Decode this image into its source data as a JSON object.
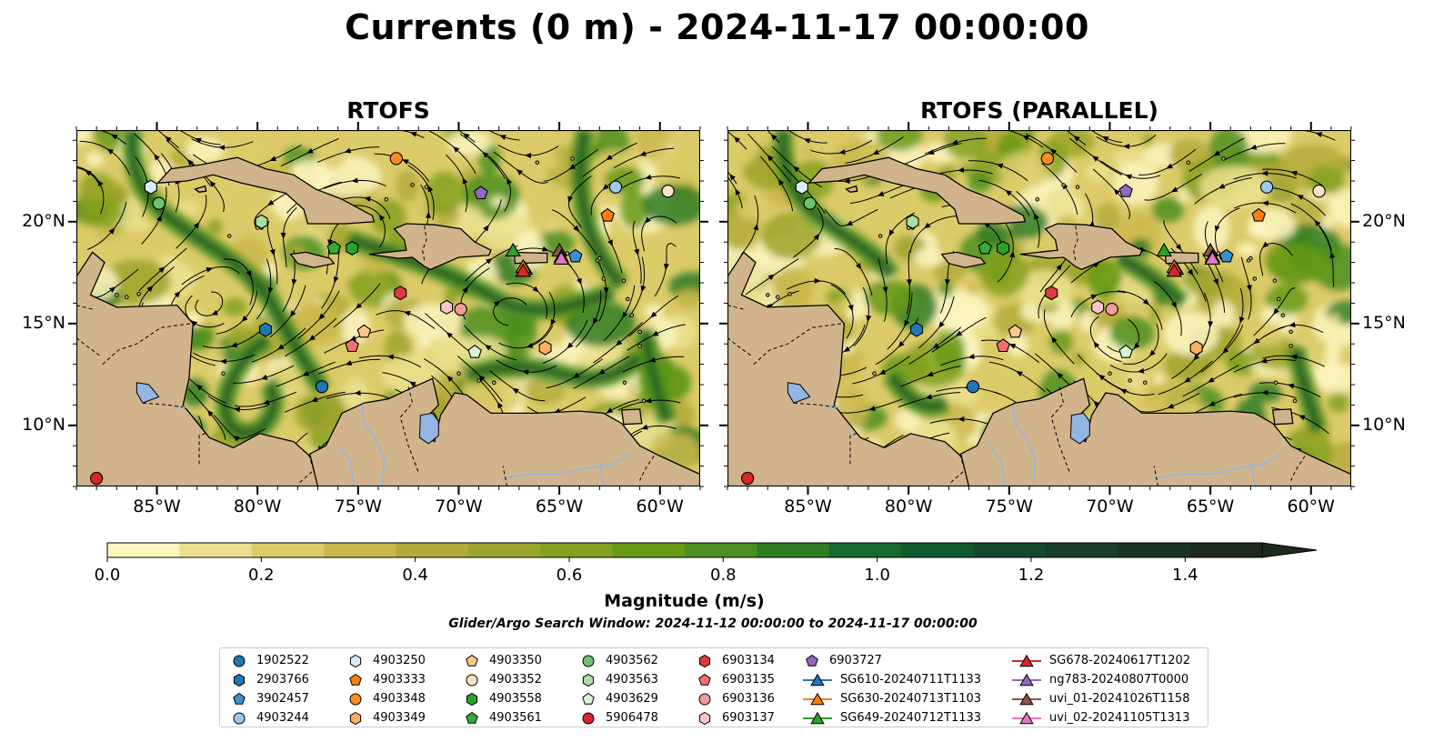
{
  "title": "Currents (0 m) - 2024-11-17 00:00:00",
  "panels": [
    {
      "title": "RTOFS",
      "y_tick_side": "left"
    },
    {
      "title": "RTOFS (PARALLEL)",
      "y_tick_side": "right"
    }
  ],
  "x_ticks": [
    "85°W",
    "80°W",
    "75°W",
    "70°W",
    "65°W",
    "60°W"
  ],
  "y_ticks": [
    "20°N",
    "15°N",
    "10°N"
  ],
  "colorbar": {
    "label": "Magnitude (m/s)",
    "ticks": [
      "0.0",
      "0.2",
      "0.4",
      "0.6",
      "0.8",
      "1.0",
      "1.2",
      "1.4"
    ],
    "colors": [
      "#fbf5c0",
      "#ece08f",
      "#dccb69",
      "#cbb84c",
      "#b4aa3a",
      "#9ca52b",
      "#84a11d",
      "#679a15",
      "#4c8f1e",
      "#2f7d23",
      "#166a2c",
      "#0f5a2f",
      "#124a2b",
      "#183d28",
      "#1c3221",
      "#1c2a1c"
    ],
    "extend": "max"
  },
  "search_window": "Glider/Argo Search Window: 2024-11-12 00:00:00 to 2024-11-17 00:00:00",
  "chart_data": [
    {
      "type": "heatmap",
      "title": "RTOFS",
      "variable": "Currents (0 m) magnitude with streamlines",
      "xlabel": "",
      "ylabel": "",
      "xlim": [
        -89,
        -58
      ],
      "ylim": [
        7,
        24.5
      ],
      "colorbar_range": [
        0.0,
        1.5
      ],
      "grid": false,
      "platforms": [
        {
          "id": "1902522",
          "lon": -76.8,
          "lat": 11.9
        },
        {
          "id": "2903766",
          "lon": -79.6,
          "lat": 14.7
        },
        {
          "id": "4903250",
          "lon": -85.3,
          "lat": 21.7
        },
        {
          "id": "4903562",
          "lon": -84.9,
          "lat": 20.9
        },
        {
          "id": "4903563",
          "lon": -79.8,
          "lat": 20.0
        },
        {
          "id": "4903348",
          "lon": -73.1,
          "lat": 23.1
        },
        {
          "id": "6903727",
          "lon": -68.9,
          "lat": 21.4
        },
        {
          "id": "4903244",
          "lon": -62.2,
          "lat": 21.7
        },
        {
          "id": "4903352",
          "lon": -59.6,
          "lat": 21.5
        },
        {
          "id": "4903333",
          "lon": -62.6,
          "lat": 20.3
        },
        {
          "id": "4903561",
          "lon": -76.2,
          "lat": 18.7
        },
        {
          "id": "4903558",
          "lon": -75.3,
          "lat": 18.7
        },
        {
          "id": "6903134",
          "lon": -72.9,
          "lat": 16.5
        },
        {
          "id": "6903137",
          "lon": -70.6,
          "lat": 15.8
        },
        {
          "id": "6903136",
          "lon": -69.9,
          "lat": 15.7
        },
        {
          "id": "4903350",
          "lon": -74.7,
          "lat": 14.6
        },
        {
          "id": "6903135",
          "lon": -75.3,
          "lat": 13.9
        },
        {
          "id": "4903629",
          "lon": -69.2,
          "lat": 13.6
        },
        {
          "id": "4903349",
          "lon": -65.7,
          "lat": 13.8
        },
        {
          "id": "3902457",
          "lon": -64.2,
          "lat": 18.3
        },
        {
          "id": "5906478",
          "lon": -88.0,
          "lat": 7.4
        }
      ],
      "gliders": [
        {
          "id": "SG649-20240712T1133",
          "lon": -67.3,
          "lat": 18.6
        },
        {
          "id": "SG610-20240711T1133",
          "lon": -66.7,
          "lat": 17.7
        },
        {
          "id": "SG630-20240713T1103",
          "lon": -66.8,
          "lat": 17.8
        },
        {
          "id": "SG678-20240617T1202",
          "lon": -66.8,
          "lat": 17.6
        },
        {
          "id": "uvi_01-20241026T1158",
          "lon": -65.0,
          "lat": 18.6
        },
        {
          "id": "ng783-20240807T0000",
          "lon": -64.9,
          "lat": 18.3
        },
        {
          "id": "uvi_02-20241105T1313",
          "lon": -64.9,
          "lat": 18.2
        }
      ]
    },
    {
      "type": "heatmap",
      "title": "RTOFS (PARALLEL)",
      "variable": "Currents (0 m) magnitude with streamlines",
      "xlabel": "",
      "ylabel": "",
      "xlim": [
        -89,
        -58
      ],
      "ylim": [
        7,
        24.5
      ],
      "colorbar_range": [
        0.0,
        1.5
      ],
      "grid": false,
      "platforms": [
        {
          "id": "1902522",
          "lon": -76.8,
          "lat": 11.9
        },
        {
          "id": "2903766",
          "lon": -79.6,
          "lat": 14.7
        },
        {
          "id": "4903250",
          "lon": -85.3,
          "lat": 21.7
        },
        {
          "id": "4903562",
          "lon": -84.9,
          "lat": 20.9
        },
        {
          "id": "4903563",
          "lon": -79.8,
          "lat": 20.0
        },
        {
          "id": "4903348",
          "lon": -73.1,
          "lat": 23.1
        },
        {
          "id": "6903727",
          "lon": -69.2,
          "lat": 21.5
        },
        {
          "id": "4903244",
          "lon": -62.2,
          "lat": 21.7
        },
        {
          "id": "4903352",
          "lon": -59.6,
          "lat": 21.5
        },
        {
          "id": "4903333",
          "lon": -62.6,
          "lat": 20.3
        },
        {
          "id": "4903561",
          "lon": -76.2,
          "lat": 18.7
        },
        {
          "id": "4903558",
          "lon": -75.3,
          "lat": 18.7
        },
        {
          "id": "6903134",
          "lon": -72.9,
          "lat": 16.5
        },
        {
          "id": "6903137",
          "lon": -70.6,
          "lat": 15.8
        },
        {
          "id": "6903136",
          "lon": -69.9,
          "lat": 15.7
        },
        {
          "id": "4903350",
          "lon": -74.7,
          "lat": 14.6
        },
        {
          "id": "6903135",
          "lon": -75.3,
          "lat": 13.9
        },
        {
          "id": "4903629",
          "lon": -69.2,
          "lat": 13.6
        },
        {
          "id": "4903349",
          "lon": -65.7,
          "lat": 13.8
        },
        {
          "id": "3902457",
          "lon": -64.2,
          "lat": 18.3
        },
        {
          "id": "5906478",
          "lon": -88.0,
          "lat": 7.4
        }
      ],
      "gliders": [
        {
          "id": "SG649-20240712T1133",
          "lon": -67.3,
          "lat": 18.6
        },
        {
          "id": "SG610-20240711T1133",
          "lon": -66.7,
          "lat": 17.7
        },
        {
          "id": "SG630-20240713T1103",
          "lon": -66.8,
          "lat": 17.8
        },
        {
          "id": "SG678-20240617T1202",
          "lon": -66.8,
          "lat": 17.6
        },
        {
          "id": "uvi_01-20241026T1158",
          "lon": -65.0,
          "lat": 18.6
        },
        {
          "id": "ng783-20240807T0000",
          "lon": -64.9,
          "lat": 18.3
        },
        {
          "id": "uvi_02-20241105T1313",
          "lon": -64.9,
          "lat": 18.2
        }
      ]
    }
  ],
  "legend": {
    "placement": "bottom-center",
    "columns": [
      [
        {
          "label": "1902522",
          "marker": "circle",
          "color": "#1f77b4"
        },
        {
          "label": "2903766",
          "marker": "hexagon",
          "color": "#1f77b4"
        },
        {
          "label": "3902457",
          "marker": "pentagon",
          "color": "#3a8fd0"
        },
        {
          "label": "4903244",
          "marker": "circle",
          "color": "#9ec9ec"
        }
      ],
      [
        {
          "label": "4903250",
          "marker": "hexagon",
          "color": "#d8ecfb"
        },
        {
          "label": "4903333",
          "marker": "pentagon",
          "color": "#ff7f0e"
        },
        {
          "label": "4903348",
          "marker": "circle",
          "color": "#ff8c24"
        },
        {
          "label": "4903349",
          "marker": "hexagon",
          "color": "#ffb061"
        }
      ],
      [
        {
          "label": "4903350",
          "marker": "pentagon",
          "color": "#ffc88a"
        },
        {
          "label": "4903352",
          "marker": "circle",
          "color": "#ffe1c4"
        },
        {
          "label": "4903558",
          "marker": "hexagon",
          "color": "#2ca02c"
        },
        {
          "label": "4903561",
          "marker": "pentagon",
          "color": "#38aa38"
        }
      ],
      [
        {
          "label": "4903562",
          "marker": "circle",
          "color": "#6cc46c"
        },
        {
          "label": "4903563",
          "marker": "hexagon",
          "color": "#a8e0a0"
        },
        {
          "label": "4903629",
          "marker": "pentagon",
          "color": "#d8f5d0"
        },
        {
          "label": "5906478",
          "marker": "circle",
          "color": "#d62728"
        }
      ],
      [
        {
          "label": "6903134",
          "marker": "hexagon",
          "color": "#dc3c3c"
        },
        {
          "label": "6903135",
          "marker": "pentagon",
          "color": "#f07070"
        },
        {
          "label": "6903136",
          "marker": "circle",
          "color": "#f59a9a"
        },
        {
          "label": "6903137",
          "marker": "hexagon",
          "color": "#fbc6c6"
        }
      ],
      [
        {
          "label": "6903727",
          "marker": "pentagon",
          "color": "#9467bd"
        },
        {
          "label": "SG610-20240711T1133",
          "marker": "triangle-line",
          "color": "#1f77b4"
        },
        {
          "label": "SG630-20240713T1103",
          "marker": "triangle-line",
          "color": "#ff7f0e"
        },
        {
          "label": "SG649-20240712T1133",
          "marker": "triangle-line",
          "color": "#2ca02c"
        }
      ],
      [
        {
          "label": "SG678-20240617T1202",
          "marker": "triangle-line",
          "color": "#d62728"
        },
        {
          "label": "ng783-20240807T0000",
          "marker": "triangle-line",
          "color": "#9467bd"
        },
        {
          "label": "uvi_01-20241026T1158",
          "marker": "triangle-line",
          "color": "#8c564b"
        },
        {
          "label": "uvi_02-20241105T1313",
          "marker": "triangle-line",
          "color": "#e377c2"
        }
      ]
    ]
  }
}
